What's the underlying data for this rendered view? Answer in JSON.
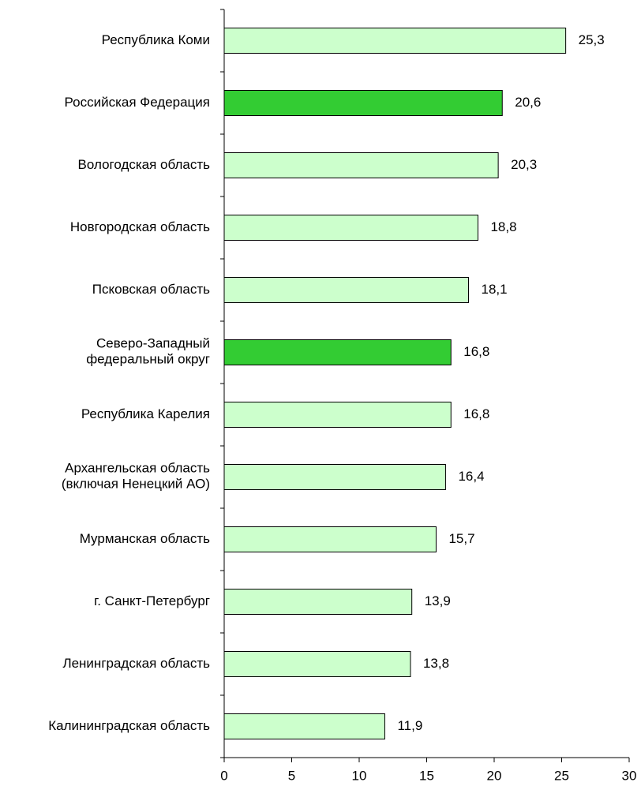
{
  "chart_data": {
    "type": "barh",
    "categories": [
      "Республика Коми",
      "Российская Федерация",
      "Вологодская область",
      "Новгородская область",
      "Псковская область",
      "Северо-Западный\nфедеральный округ",
      "Республика Карелия",
      "Архангельская область\n(включая Ненецкий АО)",
      "Мурманская область",
      "г. Санкт-Петербург",
      "Ленинградская область",
      "Калининградская область"
    ],
    "values": [
      25.3,
      20.6,
      20.3,
      18.8,
      18.1,
      16.8,
      16.8,
      16.4,
      15.7,
      13.9,
      13.8,
      11.9
    ],
    "value_labels": [
      "25,3",
      "20,6",
      "20,3",
      "18,8",
      "18,1",
      "16,8",
      "16,8",
      "16,4",
      "15,7",
      "13,9",
      "13,8",
      "11,9"
    ],
    "colors": [
      "#ccffcc",
      "#33cc33",
      "#ccffcc",
      "#ccffcc",
      "#ccffcc",
      "#33cc33",
      "#ccffcc",
      "#ccffcc",
      "#ccffcc",
      "#ccffcc",
      "#ccffcc",
      "#ccffcc"
    ],
    "xlim": [
      0,
      30
    ],
    "xticks": [
      0,
      5,
      10,
      15,
      20,
      25,
      30
    ],
    "grid": false
  }
}
